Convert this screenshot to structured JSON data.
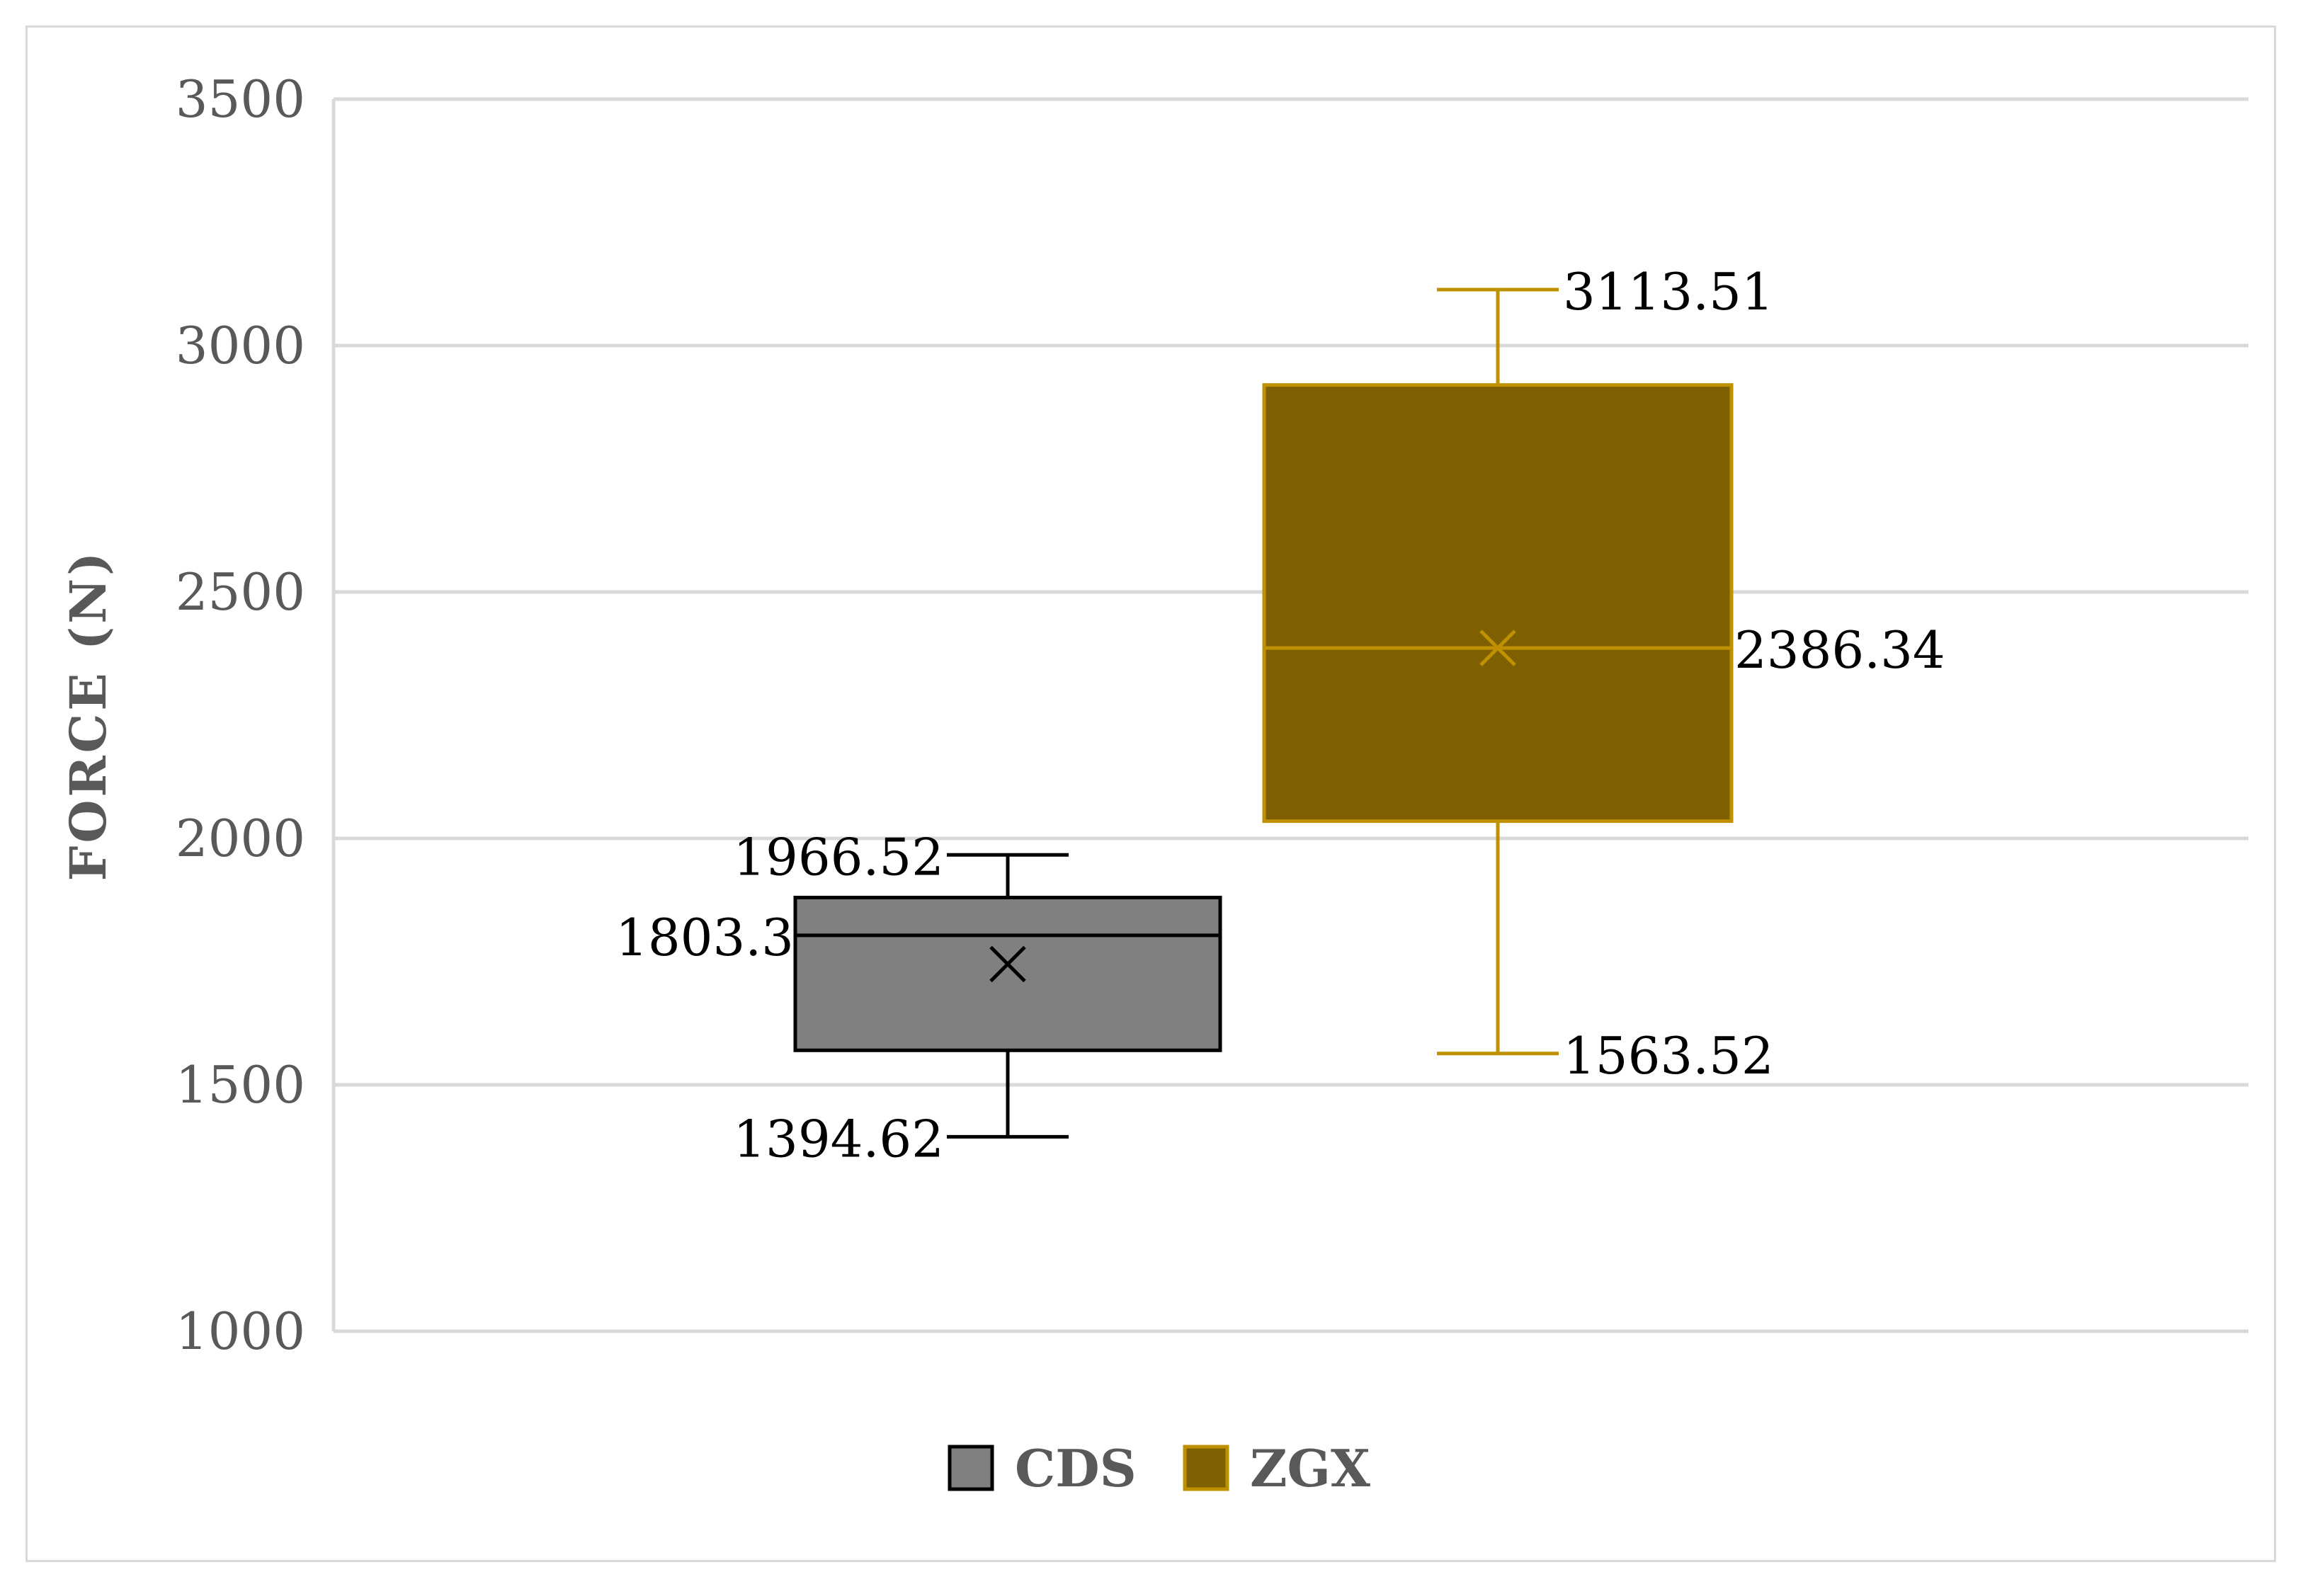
{
  "chart_data": {
    "type": "box",
    "title": "",
    "xlabel": "",
    "ylabel": "FORCE  (N)",
    "ylim": [
      1000,
      3500
    ],
    "yticks": [
      1000,
      1500,
      2000,
      2500,
      3000,
      3500
    ],
    "grid": true,
    "legend_position": "bottom",
    "series": [
      {
        "name": "CDS",
        "color": "#808080",
        "edge_color": "#000000",
        "min": 1394.62,
        "q1": 1570,
        "median": 1803.3,
        "q3": 1880,
        "max": 1966.52,
        "mean": 1745,
        "labels": {
          "max": "1966.52",
          "median": "1803.3",
          "min": "1394.62"
        }
      },
      {
        "name": "ZGX",
        "color": "#7f6000",
        "edge_color": "#bf9000",
        "min": 1563.52,
        "q1": 2035,
        "median": 2386.34,
        "q3": 2920,
        "max": 3113.51,
        "mean": 2386.34,
        "labels": {
          "max": "3113.51",
          "median": "2386.34",
          "min": "1563.52"
        }
      }
    ]
  }
}
